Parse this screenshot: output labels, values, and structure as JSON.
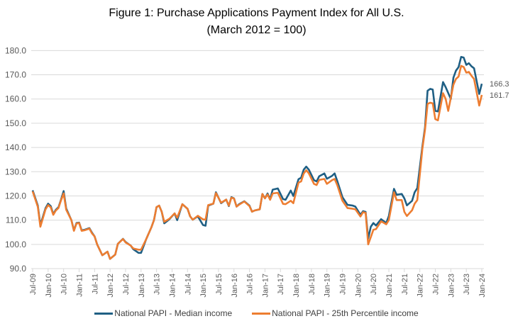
{
  "chart_data": {
    "type": "line",
    "title": "Figure 1: Purchase Applications Payment Index for All U.S.",
    "subtitle": "(March 2012 = 100)",
    "xlabel": "",
    "ylabel": "",
    "x_unit": "months since Jul-09",
    "ylim": [
      90,
      180
    ],
    "yticks": [
      "90.0",
      "100.0",
      "110.0",
      "120.0",
      "130.0",
      "140.0",
      "150.0",
      "160.0",
      "170.0",
      "180.0"
    ],
    "xticks": [
      "Jul-09",
      "Jan-10",
      "Jul-10",
      "Jan-11",
      "Jul-11",
      "Jan-12",
      "Jul-12",
      "Jan-13",
      "Jul-13",
      "Jan-14",
      "Jul-14",
      "Jan-15",
      "Jul-15",
      "Jan-16",
      "Jul-16",
      "Jan-17",
      "Jul-17",
      "Jan-18",
      "Jul-18",
      "Jan-19",
      "Jul-19",
      "Jan-20",
      "Jul-20",
      "Jan-21",
      "Jul-21",
      "Jan-22",
      "Jul-22",
      "Jan-23",
      "Jul-23",
      "Jan-24"
    ],
    "grid": true,
    "legend_position": "bottom",
    "series": [
      {
        "name": "National PAPI - Median income",
        "color": "#1f5f84",
        "end_label": "166.3",
        "points": [
          [
            0,
            122.3
          ],
          [
            2,
            116
          ],
          [
            3,
            108
          ],
          [
            5,
            115
          ],
          [
            6,
            116.8
          ],
          [
            7,
            115.8
          ],
          [
            8,
            112.5
          ],
          [
            9,
            114.3
          ],
          [
            10,
            115.3
          ],
          [
            11,
            118.5
          ],
          [
            12,
            122
          ],
          [
            13,
            114.8
          ],
          [
            15,
            110
          ],
          [
            16,
            105.8
          ],
          [
            17,
            108.8
          ],
          [
            18,
            109
          ],
          [
            19,
            105.8
          ],
          [
            20,
            106
          ],
          [
            22,
            106.7
          ],
          [
            23,
            104.8
          ],
          [
            24,
            103.3
          ],
          [
            25,
            100
          ],
          [
            27,
            95.5
          ],
          [
            29,
            97
          ],
          [
            30,
            94
          ],
          [
            32,
            95.8
          ],
          [
            33,
            100.2
          ],
          [
            35,
            102.3
          ],
          [
            36,
            101
          ],
          [
            38,
            99.5
          ],
          [
            39,
            98
          ],
          [
            41,
            96.5
          ],
          [
            42,
            96.5
          ],
          [
            44,
            102.2
          ],
          [
            46,
            107
          ],
          [
            47,
            110
          ],
          [
            48,
            115.4
          ],
          [
            49,
            116
          ],
          [
            50,
            113.5
          ],
          [
            51,
            108.7
          ],
          [
            53,
            110.4
          ],
          [
            55,
            112.8
          ],
          [
            56,
            110
          ],
          [
            58,
            116.6
          ],
          [
            60,
            114.7
          ],
          [
            61,
            111.6
          ],
          [
            62,
            110.2
          ],
          [
            64,
            111.6
          ],
          [
            66,
            108
          ],
          [
            67,
            107.7
          ],
          [
            68,
            116
          ],
          [
            70,
            116.8
          ],
          [
            71,
            121.5
          ],
          [
            73,
            117
          ],
          [
            75,
            118.5
          ],
          [
            76,
            115.8
          ],
          [
            77,
            119.5
          ],
          [
            78,
            119
          ],
          [
            79,
            115.6
          ],
          [
            80,
            116.6
          ],
          [
            82,
            117.8
          ],
          [
            84,
            116
          ],
          [
            85,
            113.5
          ],
          [
            86,
            114
          ],
          [
            88,
            114.5
          ],
          [
            89,
            120.8
          ],
          [
            90,
            119
          ],
          [
            91,
            121
          ],
          [
            92,
            118.6
          ],
          [
            93,
            122.6
          ],
          [
            95,
            123.1
          ],
          [
            97,
            118.7
          ],
          [
            98,
            118.4
          ],
          [
            100,
            122.2
          ],
          [
            101,
            120
          ],
          [
            103,
            126.9
          ],
          [
            104,
            127.5
          ],
          [
            105,
            130.8
          ],
          [
            106,
            132.1
          ],
          [
            107,
            130.8
          ],
          [
            109,
            126.5
          ],
          [
            110,
            126
          ],
          [
            111,
            128.1
          ],
          [
            113,
            129.3
          ],
          [
            114,
            127.1
          ],
          [
            116,
            128.3
          ],
          [
            117,
            129.3
          ],
          [
            118,
            126.2
          ],
          [
            120,
            119.5
          ],
          [
            122,
            116.3
          ],
          [
            124,
            116
          ],
          [
            125,
            115.6
          ],
          [
            127,
            112.2
          ],
          [
            128,
            113.7
          ],
          [
            129,
            113.4
          ],
          [
            130,
            102.4
          ],
          [
            131,
            107.3
          ],
          [
            132,
            108.8
          ],
          [
            133,
            107.8
          ],
          [
            135,
            110.4
          ],
          [
            137,
            108.8
          ],
          [
            138,
            111.7
          ],
          [
            140,
            122.9
          ],
          [
            141,
            120.5
          ],
          [
            143,
            120.8
          ],
          [
            144,
            119
          ],
          [
            145,
            116.1
          ],
          [
            147,
            118
          ],
          [
            148,
            121.5
          ],
          [
            149,
            123.2
          ],
          [
            151,
            140.5
          ],
          [
            152,
            148.3
          ],
          [
            153,
            163.4
          ],
          [
            154,
            164.2
          ],
          [
            155,
            163.9
          ],
          [
            156,
            155.1
          ],
          [
            157,
            154.9
          ],
          [
            159,
            167
          ],
          [
            160,
            164.9
          ],
          [
            162,
            160
          ],
          [
            163,
            168.8
          ],
          [
            164,
            171.7
          ],
          [
            165,
            173.2
          ],
          [
            166,
            177.4
          ],
          [
            167,
            177.1
          ],
          [
            168,
            174.1
          ],
          [
            169,
            174.8
          ],
          [
            170,
            173.5
          ],
          [
            171,
            172.7
          ],
          [
            173,
            162.1
          ],
          [
            174,
            166.3
          ]
        ]
      },
      {
        "name": "National PAPI - 25th Percentile income",
        "color": "#ed7d31",
        "end_label": "161.7",
        "points": [
          [
            0,
            121.9
          ],
          [
            2,
            115.5
          ],
          [
            3,
            107.3
          ],
          [
            5,
            114.5
          ],
          [
            6,
            116.2
          ],
          [
            7,
            115.3
          ],
          [
            8,
            112.2
          ],
          [
            9,
            114
          ],
          [
            10,
            115
          ],
          [
            11,
            118.2
          ],
          [
            12,
            121
          ],
          [
            13,
            114.3
          ],
          [
            15,
            110
          ],
          [
            16,
            105.6
          ],
          [
            17,
            108.6
          ],
          [
            18,
            108.8
          ],
          [
            19,
            105.6
          ],
          [
            20,
            105.8
          ],
          [
            22,
            106.5
          ],
          [
            23,
            104.5
          ],
          [
            24,
            103.3
          ],
          [
            25,
            100
          ],
          [
            27,
            95.5
          ],
          [
            29,
            97
          ],
          [
            30,
            94
          ],
          [
            32,
            95.8
          ],
          [
            33,
            100.2
          ],
          [
            35,
            102.2
          ],
          [
            36,
            100.8
          ],
          [
            38,
            99.5
          ],
          [
            39,
            98.3
          ],
          [
            41,
            97.8
          ],
          [
            42,
            97.8
          ],
          [
            44,
            102.2
          ],
          [
            46,
            107
          ],
          [
            47,
            110
          ],
          [
            48,
            115.4
          ],
          [
            49,
            116
          ],
          [
            50,
            113.5
          ],
          [
            51,
            109.3
          ],
          [
            53,
            110.6
          ],
          [
            55,
            112.8
          ],
          [
            56,
            111
          ],
          [
            58,
            116.6
          ],
          [
            60,
            114.7
          ],
          [
            61,
            111.6
          ],
          [
            62,
            110.2
          ],
          [
            64,
            111.8
          ],
          [
            66,
            110.3
          ],
          [
            67,
            110.2
          ],
          [
            68,
            116.2
          ],
          [
            70,
            116.8
          ],
          [
            71,
            121.2
          ],
          [
            73,
            117.2
          ],
          [
            75,
            118.5
          ],
          [
            76,
            116
          ],
          [
            77,
            119.3
          ],
          [
            78,
            118.9
          ],
          [
            79,
            115.6
          ],
          [
            80,
            116.4
          ],
          [
            82,
            117.7
          ],
          [
            84,
            115.8
          ],
          [
            85,
            113.5
          ],
          [
            86,
            114
          ],
          [
            88,
            114.5
          ],
          [
            89,
            120.8
          ],
          [
            90,
            119
          ],
          [
            91,
            120.6
          ],
          [
            92,
            118.4
          ],
          [
            93,
            121
          ],
          [
            95,
            121.3
          ],
          [
            97,
            116.7
          ],
          [
            98,
            116.6
          ],
          [
            100,
            118
          ],
          [
            101,
            117
          ],
          [
            103,
            125.5
          ],
          [
            104,
            126
          ],
          [
            105,
            129.2
          ],
          [
            106,
            130.6
          ],
          [
            107,
            129.3
          ],
          [
            109,
            125
          ],
          [
            110,
            124.5
          ],
          [
            111,
            126.6
          ],
          [
            113,
            127
          ],
          [
            114,
            125
          ],
          [
            116,
            126.5
          ],
          [
            117,
            127
          ],
          [
            118,
            124.5
          ],
          [
            120,
            118
          ],
          [
            122,
            115
          ],
          [
            124,
            114.7
          ],
          [
            125,
            114.5
          ],
          [
            127,
            111.5
          ],
          [
            128,
            113.3
          ],
          [
            129,
            113
          ],
          [
            130,
            100
          ],
          [
            131,
            103
          ],
          [
            132,
            106
          ],
          [
            133,
            106.3
          ],
          [
            135,
            109.5
          ],
          [
            137,
            108.3
          ],
          [
            138,
            110
          ],
          [
            140,
            121.5
          ],
          [
            141,
            118.3
          ],
          [
            143,
            118.3
          ],
          [
            144,
            113.4
          ],
          [
            145,
            111.7
          ],
          [
            147,
            114.1
          ],
          [
            148,
            116.8
          ],
          [
            149,
            118.3
          ],
          [
            151,
            139.5
          ],
          [
            152,
            147.3
          ],
          [
            153,
            158
          ],
          [
            154,
            158.5
          ],
          [
            155,
            158.2
          ],
          [
            156,
            151.7
          ],
          [
            157,
            151.2
          ],
          [
            159,
            162.4
          ],
          [
            160,
            160
          ],
          [
            161,
            155.1
          ],
          [
            163,
            165.9
          ],
          [
            164,
            168.3
          ],
          [
            165,
            169.3
          ],
          [
            166,
            173.7
          ],
          [
            167,
            173.2
          ],
          [
            168,
            170.9
          ],
          [
            169,
            171.2
          ],
          [
            170,
            169.6
          ],
          [
            171,
            168.3
          ],
          [
            173,
            157.3
          ],
          [
            174,
            161.7
          ]
        ]
      }
    ]
  }
}
